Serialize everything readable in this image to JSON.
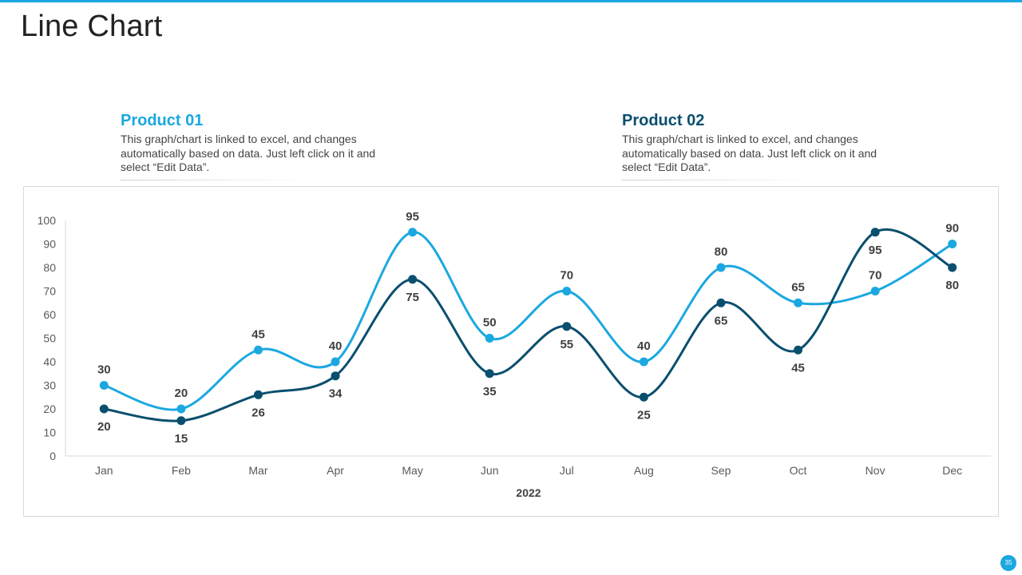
{
  "colors": {
    "accent_light": "#1ba8e0",
    "accent_dark": "#0a4f6e",
    "axis": "#d9d9d9",
    "tick_text": "#595959",
    "label_text": "#404040"
  },
  "page": {
    "title": "Line Chart",
    "page_number": "35"
  },
  "products": [
    {
      "heading": "Product 01",
      "description": "This graph/chart is linked to excel, and changes automatically based on data. Just left click on it and select “Edit Data”."
    },
    {
      "heading": "Product 02",
      "description": "This graph/chart is linked to excel, and changes automatically based on data. Just left click on it and select “Edit Data”."
    }
  ],
  "chart_data": {
    "type": "line",
    "title": "",
    "xlabel": "2022",
    "ylabel": "",
    "categories": [
      "Jan",
      "Feb",
      "Mar",
      "Apr",
      "May",
      "Jun",
      "Jul",
      "Aug",
      "Sep",
      "Oct",
      "Nov",
      "Dec"
    ],
    "ylim": [
      0,
      100
    ],
    "yticks": [
      0,
      10,
      20,
      30,
      40,
      50,
      60,
      70,
      80,
      90,
      100
    ],
    "grid": false,
    "legend": "none",
    "smooth": true,
    "series": [
      {
        "color": "#1ba8e0",
        "values": [
          30,
          20,
          45,
          40,
          95,
          50,
          70,
          40,
          80,
          65,
          70,
          90
        ],
        "label_position": [
          "above",
          "above",
          "above",
          "above",
          "above",
          "above",
          "above",
          "above",
          "above",
          "above",
          "above",
          "above"
        ]
      },
      {
        "color": "#0a4f6e",
        "values": [
          20,
          15,
          26,
          34,
          75,
          35,
          55,
          25,
          65,
          45,
          95,
          80
        ],
        "label_position": [
          "below",
          "below",
          "below",
          "below",
          "below",
          "below",
          "below",
          "below",
          "below",
          "below",
          "below",
          "below"
        ]
      }
    ]
  }
}
